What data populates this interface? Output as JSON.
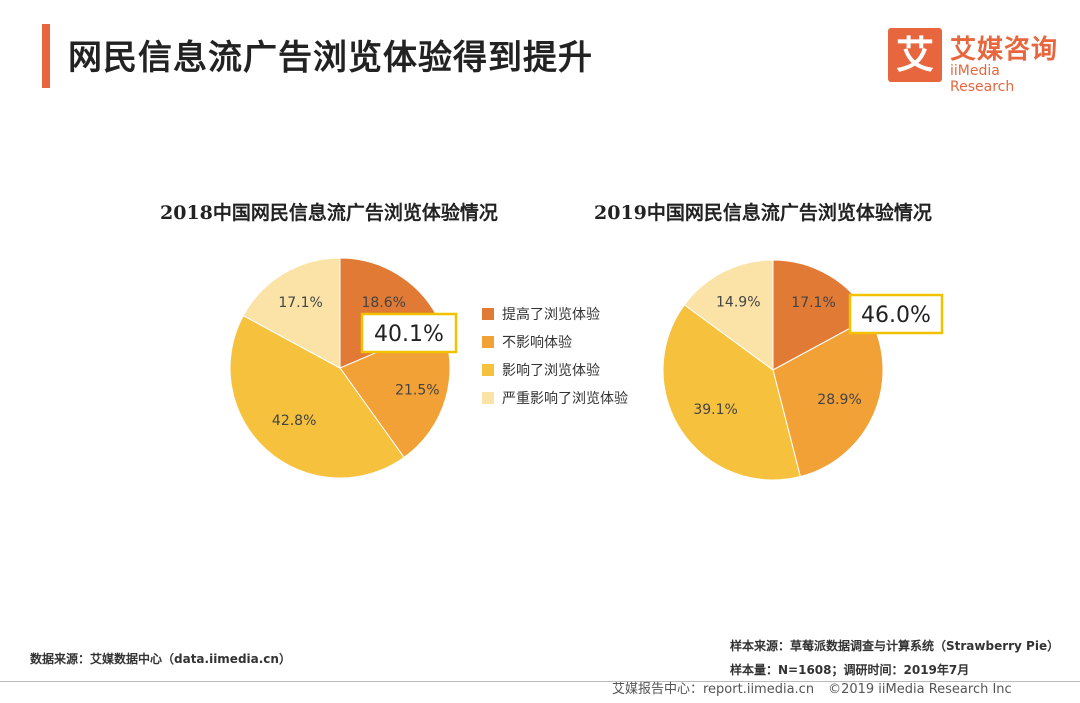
{
  "header": {
    "title": "网民信息流广告浏览体验得到提升",
    "logo_mark": "艾",
    "logo_cn": "艾媒咨询",
    "logo_en": "iiMedia Research"
  },
  "legend": [
    {
      "label": "提高了浏览体验",
      "color": "#e07a35"
    },
    {
      "label": "不影响体验",
      "color": "#f2a137"
    },
    {
      "label": "影响了浏览体验",
      "color": "#f6c23e"
    },
    {
      "label": "严重影响了浏览体验",
      "color": "#fbe3a8"
    }
  ],
  "chart_data": [
    {
      "type": "pie",
      "title": "2018中国网民信息流广告浏览体验情况",
      "categories": [
        "提高了浏览体验",
        "不影响体验",
        "影响了浏览体验",
        "严重影响了浏览体验"
      ],
      "values": [
        18.6,
        21.5,
        42.8,
        17.1
      ],
      "labels": [
        "18.6%",
        "21.5%",
        "42.8%",
        "17.1%"
      ],
      "callout": "40.1%",
      "colors": [
        "#e07a35",
        "#f2a137",
        "#f6c23e",
        "#fbe3a8"
      ]
    },
    {
      "type": "pie",
      "title": "2019中国网民信息流广告浏览体验情况",
      "categories": [
        "提高了浏览体验",
        "不影响体验",
        "影响了浏览体验",
        "严重影响了浏览体验"
      ],
      "values": [
        17.1,
        28.9,
        39.1,
        14.9
      ],
      "labels": [
        "17.1%",
        "28.9%",
        "39.1%",
        "14.9%"
      ],
      "callout": "46.0%",
      "colors": [
        "#e07a35",
        "#f2a137",
        "#f6c23e",
        "#fbe3a8"
      ]
    }
  ],
  "footer": {
    "data_source": "数据来源：艾媒数据中心（data.iimedia.cn）",
    "sample_source": "样本来源：草莓派数据调查与计算系统（Strawberry Pie）",
    "sample_size": "样本量：N=1608；调研时间：2019年7月",
    "report_center": "艾媒报告中心：report.iimedia.cn",
    "copyright": "©2019  iiMedia Research  Inc"
  }
}
